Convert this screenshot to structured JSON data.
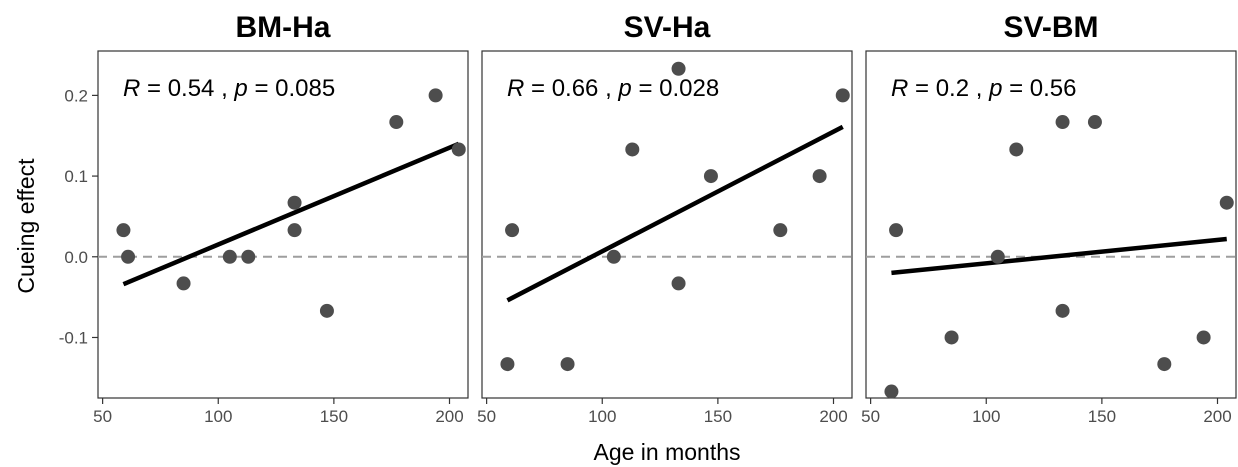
{
  "chart_data": {
    "type": "scatter",
    "xlabel": "Age in months",
    "ylabel": "Cueing effect",
    "xlim": [
      48,
      208
    ],
    "ylim": [
      -0.175,
      0.255
    ],
    "xticks": [
      50,
      100,
      150,
      200
    ],
    "xtick_labels": [
      "50",
      "100",
      "150",
      "200"
    ],
    "yticks": [
      -0.1,
      0.0,
      0.1,
      0.2
    ],
    "ytick_labels": [
      "-0.1",
      "0.0",
      "0.1",
      "0.2"
    ],
    "reference_line": {
      "y": 0,
      "style": "dashed",
      "color": "#9e9e9e"
    },
    "point_color": "#4d4d4d",
    "fit_line_color": "#000000",
    "grid": false,
    "panels": [
      {
        "title": "BM-Ha",
        "stat": {
          "r_symbol": "R",
          "r_value": "= 0.54 ,",
          "p_symbol": "p",
          "p_value": "= 0.085"
        },
        "points": [
          {
            "x": 59,
            "y": 0.033
          },
          {
            "x": 61,
            "y": 0.0
          },
          {
            "x": 85,
            "y": -0.033
          },
          {
            "x": 105,
            "y": 0.0
          },
          {
            "x": 113,
            "y": 0.0
          },
          {
            "x": 133,
            "y": 0.067
          },
          {
            "x": 133,
            "y": 0.033
          },
          {
            "x": 147,
            "y": -0.067
          },
          {
            "x": 177,
            "y": 0.167
          },
          {
            "x": 194,
            "y": 0.2
          },
          {
            "x": 204,
            "y": 0.133
          }
        ],
        "fit": {
          "x": [
            59,
            204
          ],
          "y": [
            -0.034,
            0.14
          ]
        }
      },
      {
        "title": "SV-Ha",
        "stat": {
          "r_symbol": "R",
          "r_value": "= 0.66 ,",
          "p_symbol": "p",
          "p_value": "= 0.028"
        },
        "points": [
          {
            "x": 59,
            "y": -0.133
          },
          {
            "x": 61,
            "y": 0.033
          },
          {
            "x": 85,
            "y": -0.133
          },
          {
            "x": 105,
            "y": 0.0
          },
          {
            "x": 113,
            "y": 0.133
          },
          {
            "x": 133,
            "y": 0.233
          },
          {
            "x": 133,
            "y": -0.033
          },
          {
            "x": 147,
            "y": 0.1
          },
          {
            "x": 177,
            "y": 0.033
          },
          {
            "x": 194,
            "y": 0.1
          },
          {
            "x": 204,
            "y": 0.2
          }
        ],
        "fit": {
          "x": [
            59,
            204
          ],
          "y": [
            -0.054,
            0.161
          ]
        }
      },
      {
        "title": "SV-BM",
        "stat": {
          "r_symbol": "R",
          "r_value": "= 0.2 ,",
          "p_symbol": "p",
          "p_value": "= 0.56"
        },
        "points": [
          {
            "x": 59,
            "y": -0.167
          },
          {
            "x": 61,
            "y": 0.033
          },
          {
            "x": 85,
            "y": -0.1
          },
          {
            "x": 105,
            "y": 0.0
          },
          {
            "x": 113,
            "y": 0.133
          },
          {
            "x": 133,
            "y": 0.167
          },
          {
            "x": 133,
            "y": -0.067
          },
          {
            "x": 147,
            "y": 0.167
          },
          {
            "x": 177,
            "y": -0.133
          },
          {
            "x": 194,
            "y": -0.1
          },
          {
            "x": 204,
            "y": 0.067
          }
        ],
        "fit": {
          "x": [
            59,
            204
          ],
          "y": [
            -0.02,
            0.022
          ]
        }
      }
    ]
  }
}
